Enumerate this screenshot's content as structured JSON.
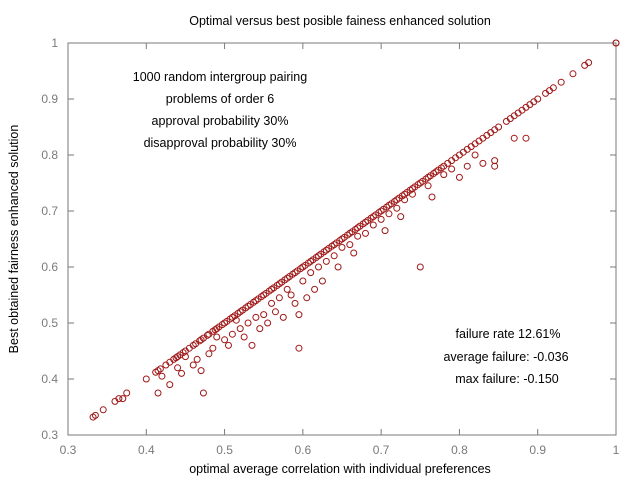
{
  "chart_data": {
    "type": "scatter",
    "title": "Optimal versus best posible fainess enhanced solution",
    "xlabel": "optimal average correlation with individual preferences",
    "ylabel": "Best obtained fairness enhanced solution",
    "xlim": [
      0.3,
      1.0
    ],
    "ylim": [
      0.3,
      1.0
    ],
    "xticks": [
      "0.3",
      "0.4",
      "0.5",
      "0.6",
      "0.7",
      "0.8",
      "0.9",
      "1"
    ],
    "yticks": [
      "0.3",
      "0.4",
      "0.5",
      "0.6",
      "0.7",
      "0.8",
      "0.9",
      "1"
    ],
    "grid": false,
    "marker_color": "#a01818",
    "annotations_left": [
      "1000 random intergroup pairing",
      "problems of order 6",
      "approval probability 30%",
      "disapproval probability 30%"
    ],
    "annotations_right": [
      "failure rate 12.61%",
      "average failure:  -0.036",
      "max failure: -0.150"
    ],
    "points": [
      [
        0.332,
        0.332
      ],
      [
        0.335,
        0.335
      ],
      [
        0.345,
        0.345
      ],
      [
        0.36,
        0.36
      ],
      [
        0.365,
        0.365
      ],
      [
        0.375,
        0.375
      ],
      [
        0.4,
        0.4
      ],
      [
        0.412,
        0.412
      ],
      [
        0.415,
        0.415
      ],
      [
        0.418,
        0.418
      ],
      [
        0.425,
        0.425
      ],
      [
        0.43,
        0.43
      ],
      [
        0.435,
        0.435
      ],
      [
        0.438,
        0.438
      ],
      [
        0.44,
        0.44
      ],
      [
        0.443,
        0.443
      ],
      [
        0.447,
        0.447
      ],
      [
        0.45,
        0.45
      ],
      [
        0.455,
        0.455
      ],
      [
        0.46,
        0.46
      ],
      [
        0.463,
        0.463
      ],
      [
        0.468,
        0.468
      ],
      [
        0.47,
        0.47
      ],
      [
        0.473,
        0.473
      ],
      [
        0.478,
        0.478
      ],
      [
        0.48,
        0.48
      ],
      [
        0.485,
        0.485
      ],
      [
        0.488,
        0.488
      ],
      [
        0.49,
        0.49
      ],
      [
        0.493,
        0.493
      ],
      [
        0.497,
        0.497
      ],
      [
        0.5,
        0.5
      ],
      [
        0.503,
        0.503
      ],
      [
        0.507,
        0.507
      ],
      [
        0.51,
        0.51
      ],
      [
        0.513,
        0.513
      ],
      [
        0.517,
        0.517
      ],
      [
        0.52,
        0.52
      ],
      [
        0.523,
        0.523
      ],
      [
        0.527,
        0.527
      ],
      [
        0.53,
        0.53
      ],
      [
        0.533,
        0.533
      ],
      [
        0.537,
        0.537
      ],
      [
        0.54,
        0.54
      ],
      [
        0.543,
        0.543
      ],
      [
        0.547,
        0.547
      ],
      [
        0.55,
        0.55
      ],
      [
        0.553,
        0.553
      ],
      [
        0.557,
        0.557
      ],
      [
        0.56,
        0.56
      ],
      [
        0.563,
        0.563
      ],
      [
        0.567,
        0.567
      ],
      [
        0.57,
        0.57
      ],
      [
        0.573,
        0.573
      ],
      [
        0.577,
        0.577
      ],
      [
        0.58,
        0.58
      ],
      [
        0.583,
        0.583
      ],
      [
        0.587,
        0.587
      ],
      [
        0.59,
        0.59
      ],
      [
        0.593,
        0.593
      ],
      [
        0.597,
        0.597
      ],
      [
        0.6,
        0.6
      ],
      [
        0.603,
        0.603
      ],
      [
        0.607,
        0.607
      ],
      [
        0.61,
        0.61
      ],
      [
        0.613,
        0.613
      ],
      [
        0.617,
        0.617
      ],
      [
        0.62,
        0.62
      ],
      [
        0.623,
        0.623
      ],
      [
        0.627,
        0.627
      ],
      [
        0.63,
        0.63
      ],
      [
        0.633,
        0.633
      ],
      [
        0.637,
        0.637
      ],
      [
        0.64,
        0.64
      ],
      [
        0.643,
        0.643
      ],
      [
        0.647,
        0.647
      ],
      [
        0.65,
        0.65
      ],
      [
        0.653,
        0.653
      ],
      [
        0.657,
        0.657
      ],
      [
        0.66,
        0.66
      ],
      [
        0.663,
        0.663
      ],
      [
        0.667,
        0.667
      ],
      [
        0.67,
        0.67
      ],
      [
        0.673,
        0.673
      ],
      [
        0.677,
        0.677
      ],
      [
        0.68,
        0.68
      ],
      [
        0.683,
        0.683
      ],
      [
        0.687,
        0.687
      ],
      [
        0.69,
        0.69
      ],
      [
        0.693,
        0.693
      ],
      [
        0.697,
        0.697
      ],
      [
        0.7,
        0.7
      ],
      [
        0.703,
        0.703
      ],
      [
        0.707,
        0.707
      ],
      [
        0.71,
        0.71
      ],
      [
        0.713,
        0.713
      ],
      [
        0.717,
        0.717
      ],
      [
        0.72,
        0.72
      ],
      [
        0.723,
        0.723
      ],
      [
        0.727,
        0.727
      ],
      [
        0.73,
        0.73
      ],
      [
        0.733,
        0.733
      ],
      [
        0.737,
        0.737
      ],
      [
        0.74,
        0.74
      ],
      [
        0.743,
        0.743
      ],
      [
        0.747,
        0.747
      ],
      [
        0.75,
        0.75
      ],
      [
        0.753,
        0.753
      ],
      [
        0.757,
        0.757
      ],
      [
        0.76,
        0.76
      ],
      [
        0.763,
        0.763
      ],
      [
        0.767,
        0.767
      ],
      [
        0.77,
        0.77
      ],
      [
        0.773,
        0.773
      ],
      [
        0.777,
        0.777
      ],
      [
        0.78,
        0.78
      ],
      [
        0.785,
        0.785
      ],
      [
        0.79,
        0.79
      ],
      [
        0.795,
        0.795
      ],
      [
        0.8,
        0.8
      ],
      [
        0.805,
        0.805
      ],
      [
        0.81,
        0.81
      ],
      [
        0.815,
        0.815
      ],
      [
        0.82,
        0.82
      ],
      [
        0.825,
        0.825
      ],
      [
        0.83,
        0.83
      ],
      [
        0.835,
        0.835
      ],
      [
        0.84,
        0.84
      ],
      [
        0.845,
        0.845
      ],
      [
        0.85,
        0.85
      ],
      [
        0.86,
        0.86
      ],
      [
        0.865,
        0.865
      ],
      [
        0.87,
        0.87
      ],
      [
        0.875,
        0.875
      ],
      [
        0.88,
        0.88
      ],
      [
        0.885,
        0.885
      ],
      [
        0.89,
        0.89
      ],
      [
        0.895,
        0.895
      ],
      [
        0.9,
        0.9
      ],
      [
        0.91,
        0.91
      ],
      [
        0.915,
        0.915
      ],
      [
        0.92,
        0.92
      ],
      [
        0.93,
        0.93
      ],
      [
        0.945,
        0.945
      ],
      [
        0.96,
        0.96
      ],
      [
        0.965,
        0.965
      ],
      [
        1.0,
        1.0
      ],
      [
        1.0,
        1.0
      ],
      [
        0.37,
        0.365
      ],
      [
        0.415,
        0.375
      ],
      [
        0.42,
        0.405
      ],
      [
        0.43,
        0.39
      ],
      [
        0.44,
        0.42
      ],
      [
        0.445,
        0.41
      ],
      [
        0.45,
        0.44
      ],
      [
        0.46,
        0.425
      ],
      [
        0.465,
        0.435
      ],
      [
        0.47,
        0.415
      ],
      [
        0.473,
        0.375
      ],
      [
        0.48,
        0.445
      ],
      [
        0.485,
        0.455
      ],
      [
        0.49,
        0.475
      ],
      [
        0.5,
        0.47
      ],
      [
        0.505,
        0.46
      ],
      [
        0.51,
        0.48
      ],
      [
        0.515,
        0.505
      ],
      [
        0.52,
        0.49
      ],
      [
        0.525,
        0.475
      ],
      [
        0.53,
        0.5
      ],
      [
        0.535,
        0.46
      ],
      [
        0.54,
        0.51
      ],
      [
        0.545,
        0.49
      ],
      [
        0.55,
        0.515
      ],
      [
        0.555,
        0.5
      ],
      [
        0.56,
        0.535
      ],
      [
        0.565,
        0.52
      ],
      [
        0.57,
        0.545
      ],
      [
        0.575,
        0.51
      ],
      [
        0.58,
        0.56
      ],
      [
        0.585,
        0.55
      ],
      [
        0.59,
        0.535
      ],
      [
        0.595,
        0.515
      ],
      [
        0.595,
        0.455
      ],
      [
        0.6,
        0.575
      ],
      [
        0.605,
        0.545
      ],
      [
        0.61,
        0.59
      ],
      [
        0.615,
        0.56
      ],
      [
        0.62,
        0.6
      ],
      [
        0.625,
        0.575
      ],
      [
        0.63,
        0.61
      ],
      [
        0.64,
        0.62
      ],
      [
        0.645,
        0.6
      ],
      [
        0.65,
        0.635
      ],
      [
        0.66,
        0.64
      ],
      [
        0.665,
        0.625
      ],
      [
        0.67,
        0.655
      ],
      [
        0.68,
        0.66
      ],
      [
        0.69,
        0.675
      ],
      [
        0.7,
        0.685
      ],
      [
        0.705,
        0.665
      ],
      [
        0.71,
        0.695
      ],
      [
        0.72,
        0.705
      ],
      [
        0.725,
        0.69
      ],
      [
        0.73,
        0.72
      ],
      [
        0.74,
        0.73
      ],
      [
        0.75,
        0.6
      ],
      [
        0.76,
        0.745
      ],
      [
        0.765,
        0.725
      ],
      [
        0.78,
        0.765
      ],
      [
        0.79,
        0.775
      ],
      [
        0.8,
        0.76
      ],
      [
        0.81,
        0.78
      ],
      [
        0.82,
        0.8
      ],
      [
        0.83,
        0.785
      ],
      [
        0.845,
        0.79
      ],
      [
        0.845,
        0.78
      ],
      [
        0.87,
        0.83
      ],
      [
        0.885,
        0.83
      ]
    ]
  }
}
